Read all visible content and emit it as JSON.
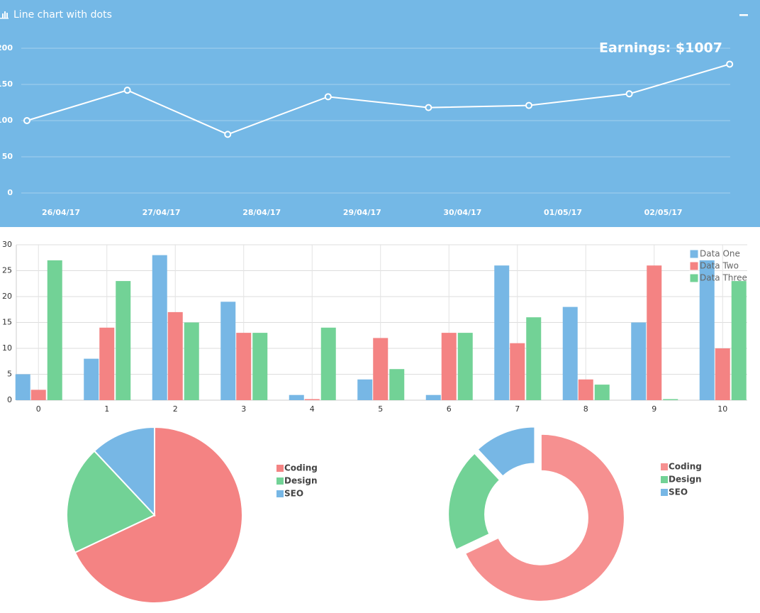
{
  "chart_data": [
    {
      "type": "line",
      "title": "Line chart with dots",
      "annotation": "Earnings: $1007",
      "categories": [
        "26/04/17",
        "27/04/17",
        "28/04/17",
        "29/04/17",
        "30/04/17",
        "01/05/17",
        "02/05/17",
        null
      ],
      "values": [
        100,
        142,
        81,
        133,
        118,
        121,
        137,
        178
      ],
      "color": "#ffffff",
      "ylim": [
        0,
        200
      ],
      "yticks": [
        0,
        50,
        100,
        150,
        200
      ],
      "grid": true
    },
    {
      "type": "bar",
      "categories": [
        "0",
        "1",
        "2",
        "3",
        "4",
        "5",
        "6",
        "7",
        "8",
        "9",
        "10"
      ],
      "series": [
        {
          "name": "Data One",
          "color": "#77b7e5",
          "values": [
            5,
            8,
            28,
            19,
            1,
            4,
            1,
            26,
            18,
            15,
            27
          ]
        },
        {
          "name": "Data Two",
          "color": "#f48383",
          "values": [
            2,
            14,
            17,
            13,
            0.2,
            12,
            13,
            11,
            4,
            26,
            10
          ]
        },
        {
          "name": "Data Three",
          "color": "#72d296",
          "values": [
            27,
            23,
            15,
            13,
            14,
            6,
            13,
            16,
            3,
            0.2,
            23
          ]
        }
      ],
      "ylim": [
        0,
        30
      ],
      "yticks": [
        0,
        5,
        10,
        15,
        20,
        25,
        30
      ],
      "grid": true,
      "legend": "top-right"
    },
    {
      "type": "pie",
      "categories": [
        "Coding",
        "Design",
        "SEO"
      ],
      "values": [
        68,
        20,
        12
      ],
      "colors": [
        "#f48383",
        "#72d296",
        "#77b7e5"
      ],
      "legend": "right"
    },
    {
      "type": "doughnut",
      "categories": [
        "Coding",
        "Design",
        "SEO"
      ],
      "values": [
        68,
        20,
        12
      ],
      "colors": [
        "#f69090",
        "#72d296",
        "#77b7e5"
      ],
      "legend": "right"
    }
  ]
}
